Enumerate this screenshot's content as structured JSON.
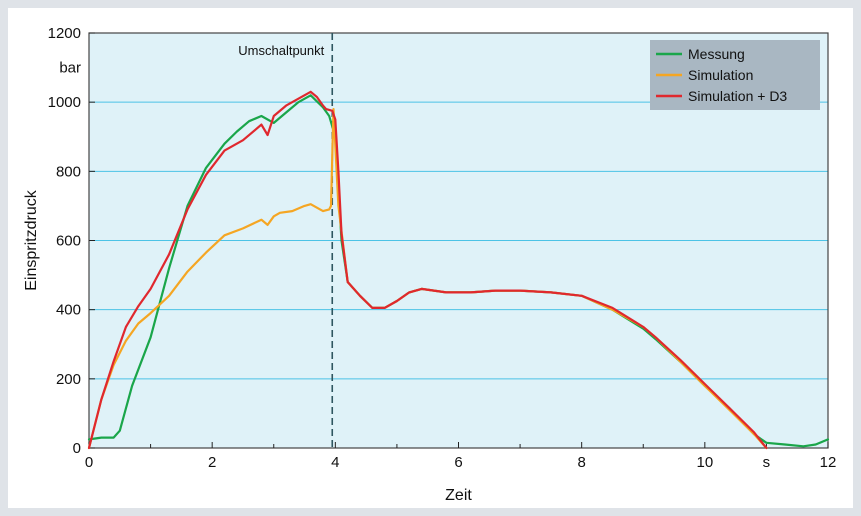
{
  "chart_data": {
    "type": "line",
    "title": "",
    "xlabel": "Zeit",
    "ylabel": "Einspritzdruck",
    "x_unit": "s",
    "y_unit": "bar",
    "xlim": [
      0,
      12
    ],
    "ylim": [
      0,
      1200
    ],
    "x_ticks": [
      0,
      2,
      4,
      6,
      8,
      10,
      12
    ],
    "y_ticks": [
      0,
      200,
      400,
      600,
      800,
      1000,
      1200
    ],
    "grid": "horizontal",
    "legend_position": "top-right",
    "colors": {
      "plot_background": "#dff2f8",
      "grid": "#4cc3e6",
      "frame": "#444444",
      "legend_background": "#a9b7c2"
    },
    "annotations": [
      {
        "text": "Umschaltpunkt",
        "x": 3.95,
        "style": "dashed-vertical-line"
      }
    ],
    "series": [
      {
        "name": "Messung",
        "color": "#1aa64a",
        "x": [
          0,
          0.2,
          0.4,
          0.5,
          0.7,
          1.0,
          1.3,
          1.6,
          1.9,
          2.2,
          2.4,
          2.6,
          2.8,
          3.0,
          3.2,
          3.4,
          3.6,
          3.8,
          3.9,
          4.0,
          4.1,
          4.2,
          4.4,
          4.6,
          4.8,
          5.0,
          5.2,
          5.4,
          5.8,
          6.2,
          6.6,
          7.0,
          7.5,
          8.0,
          8.5,
          9.0,
          9.2,
          9.6,
          10.0,
          10.4,
          10.8,
          11.0,
          11.3,
          11.6,
          11.8,
          12.0
        ],
        "y": [
          25,
          30,
          30,
          50,
          180,
          320,
          520,
          700,
          810,
          880,
          915,
          945,
          960,
          940,
          970,
          1000,
          1020,
          985,
          960,
          900,
          600,
          480,
          440,
          405,
          405,
          425,
          450,
          460,
          450,
          450,
          455,
          455,
          450,
          440,
          400,
          345,
          315,
          250,
          180,
          115,
          40,
          15,
          10,
          5,
          10,
          25
        ]
      },
      {
        "name": "Simulation",
        "color": "#f5a623",
        "x": [
          0,
          0.2,
          0.4,
          0.6,
          0.8,
          1.0,
          1.3,
          1.6,
          1.9,
          2.2,
          2.5,
          2.8,
          2.9,
          3.0,
          3.1,
          3.3,
          3.5,
          3.6,
          3.8,
          3.9,
          3.93,
          3.97,
          4.05,
          4.2,
          4.4,
          4.6,
          4.8,
          5.0,
          5.2,
          5.4,
          5.8,
          6.2,
          6.6,
          7.0,
          7.5,
          8.0,
          8.5,
          9.0,
          9.2,
          9.6,
          10.0,
          10.4,
          10.8,
          11.0
        ],
        "y": [
          0,
          140,
          240,
          310,
          360,
          390,
          440,
          510,
          565,
          615,
          635,
          660,
          645,
          670,
          680,
          685,
          700,
          705,
          685,
          690,
          700,
          980,
          700,
          480,
          440,
          405,
          405,
          425,
          450,
          460,
          450,
          450,
          455,
          455,
          450,
          440,
          400,
          350,
          320,
          250,
          180,
          110,
          40,
          0
        ]
      },
      {
        "name": "Simulation + D3",
        "color": "#e0282e",
        "x": [
          0,
          0.2,
          0.4,
          0.6,
          0.8,
          1.0,
          1.3,
          1.6,
          1.9,
          2.2,
          2.5,
          2.7,
          2.8,
          2.9,
          3.0,
          3.2,
          3.4,
          3.6,
          3.7,
          3.8,
          3.85,
          3.95,
          4.0,
          4.05,
          4.1,
          4.2,
          4.4,
          4.6,
          4.8,
          5.0,
          5.2,
          5.4,
          5.8,
          6.2,
          6.6,
          7.0,
          7.5,
          8.0,
          8.5,
          9.0,
          9.2,
          9.6,
          10.0,
          10.4,
          10.8,
          11.0
        ],
        "y": [
          0,
          140,
          250,
          350,
          410,
          460,
          560,
          690,
          790,
          860,
          890,
          920,
          935,
          905,
          960,
          990,
          1010,
          1030,
          1015,
          990,
          980,
          975,
          950,
          800,
          620,
          480,
          440,
          405,
          405,
          425,
          450,
          460,
          450,
          450,
          455,
          455,
          450,
          440,
          405,
          350,
          320,
          255,
          185,
          115,
          45,
          0
        ]
      }
    ]
  }
}
